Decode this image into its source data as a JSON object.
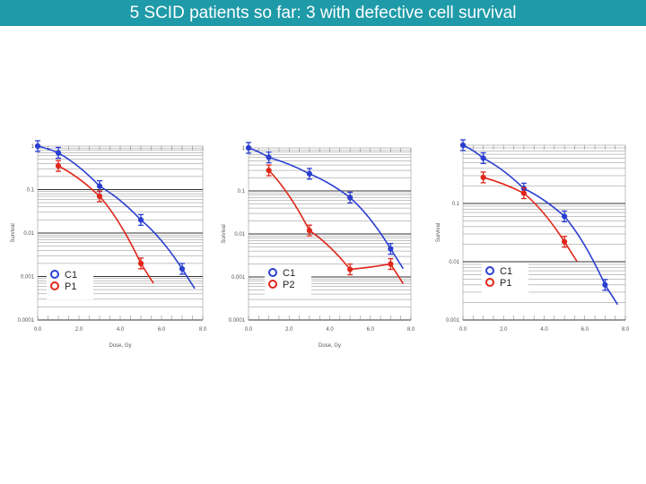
{
  "slide": {
    "title": "5 SCID patients so far: 3 with defective cell survival",
    "colors": {
      "title_bg": "#1f9aa8",
      "control": "#2a3fd1",
      "patient": "#e0261b"
    }
  },
  "chart_data": [
    {
      "type": "scatter",
      "title": "",
      "xlabel": "Dose, Gy",
      "ylabel": "Survival",
      "xlim": [
        0,
        8
      ],
      "ylim": [
        0.0001,
        1
      ],
      "yscale": "log",
      "x_ticks": [
        "0.0",
        "2.0",
        "4.0",
        "6.0",
        "8.0"
      ],
      "y_ticks": [
        "1",
        "0.1",
        "0.01",
        "0.001",
        "0.0001"
      ],
      "legend": "bottom-left",
      "series": [
        {
          "name": "C1",
          "color": "#2a3fd1",
          "x": [
            0,
            1,
            3,
            5,
            7
          ],
          "y": [
            1,
            0.7,
            0.12,
            0.02,
            0.0015
          ]
        },
        {
          "name": "P1",
          "color": "#e0261b",
          "x": [
            1,
            3,
            5
          ],
          "y": [
            0.35,
            0.07,
            0.002
          ]
        }
      ]
    },
    {
      "type": "scatter",
      "title": "",
      "xlabel": "Dose, Gy",
      "ylabel": "Survival",
      "xlim": [
        0,
        8
      ],
      "ylim": [
        0.0001,
        1
      ],
      "yscale": "log",
      "x_ticks": [
        "0.0",
        "2.0",
        "4.0",
        "6.0",
        "8.0"
      ],
      "y_ticks": [
        "1",
        "0.1",
        "0.01",
        "0.001",
        "0.0001"
      ],
      "legend": "bottom-left",
      "series": [
        {
          "name": "C1",
          "color": "#2a3fd1",
          "x": [
            0,
            1,
            3,
            5,
            7
          ],
          "y": [
            1,
            0.6,
            0.25,
            0.07,
            0.0045
          ]
        },
        {
          "name": "P2",
          "color": "#e0261b",
          "x": [
            1,
            3,
            5,
            7
          ],
          "y": [
            0.3,
            0.012,
            0.0015,
            0.002
          ]
        }
      ]
    },
    {
      "type": "scatter",
      "title": "",
      "xlabel": "",
      "ylabel": "Survival",
      "xlim": [
        0,
        8
      ],
      "ylim": [
        0.001,
        1
      ],
      "yscale": "log",
      "x_ticks": [
        "0.0",
        "2.0",
        "4.0",
        "6.0",
        "8.0"
      ],
      "y_ticks": [
        "",
        "0.1",
        "0.01",
        "0.001"
      ],
      "legend": "bottom-left",
      "series": [
        {
          "name": "C1",
          "color": "#2a3fd1",
          "x": [
            0,
            1,
            3,
            5,
            7
          ],
          "y": [
            1,
            0.6,
            0.18,
            0.06,
            0.004
          ]
        },
        {
          "name": "P1",
          "color": "#e0261b",
          "x": [
            1,
            3,
            5
          ],
          "y": [
            0.28,
            0.15,
            0.022
          ]
        }
      ]
    }
  ]
}
